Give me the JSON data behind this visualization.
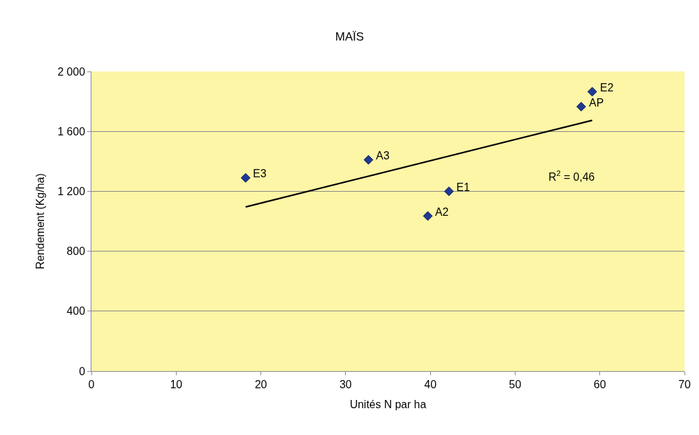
{
  "chart_data": {
    "type": "scatter",
    "title": "MAÏS",
    "xlabel": "Unités N par ha",
    "ylabel": "Rendement (Kg/ha)",
    "series": [
      {
        "marker": "diamond",
        "color": "#1f3a93",
        "x": [
          18.2,
          32.7,
          39.7,
          42.2,
          57.8,
          59.1
        ],
        "values": [
          1290,
          1410,
          1035,
          1200,
          1765,
          1865
        ]
      },
      {
        "type": "line",
        "color": "#000000",
        "x": [
          18.2,
          59.1
        ],
        "values": [
          1096,
          1674
        ]
      }
    ],
    "annotations": [
      {
        "text": "E3",
        "x": 18.2,
        "y": 1290
      },
      {
        "text": "A3",
        "x": 32.7,
        "y": 1410
      },
      {
        "text": "A2",
        "x": 39.7,
        "y": 1035
      },
      {
        "text": "E1",
        "x": 42.2,
        "y": 1200
      },
      {
        "text": "AP",
        "x": 57.8,
        "y": 1765
      },
      {
        "text": "E2",
        "x": 59.1,
        "y": 1865
      },
      "R$^{2}$ = 0,46"
    ],
    "xlim": [
      0,
      70
    ],
    "xticks": [
      0,
      10,
      20,
      30,
      40,
      50,
      60,
      70
    ],
    "ylim": [
      0,
      2000
    ],
    "yticks": [
      0,
      {
        "value": 400,
        "label": "400"
      },
      {
        "value": 800,
        "label": "800"
      },
      {
        "value": 1200,
        "label": "1 200"
      },
      {
        "value": 1600,
        "label": "1 600"
      },
      {
        "value": 2000,
        "label": "2 000"
      }
    ],
    "grid": "y"
  }
}
